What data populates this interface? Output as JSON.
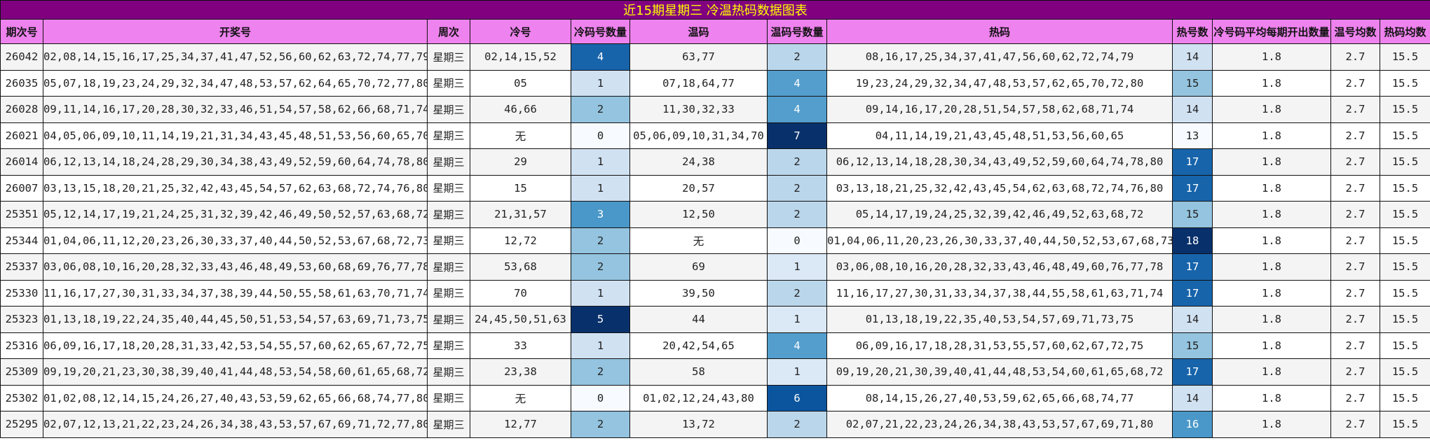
{
  "title": "近15期星期三  冷温热码数据图表",
  "headers": [
    "期次号",
    "开奖号",
    "周次",
    "冷号",
    "冷码号数量",
    "温码",
    "温码号数量",
    "热码",
    "热号数",
    "冷号码平均每期开出数量",
    "温号均数",
    "热码均数"
  ],
  "colors": {
    "title_bg": "#800080",
    "title_text": "#ffff00",
    "header_bg": "#ee82ee",
    "cold_scale": {
      "0": "#f7fbff",
      "1": "#d0e1f2",
      "2": "#94c4df",
      "3": "#4a98c9",
      "4": "#1764ab",
      "5": "#08306b"
    },
    "warm_scale": {
      "0": "#f7fbff",
      "1": "#dbe9f6",
      "2": "#bad6eb",
      "4": "#539ecd",
      "6": "#0b559f",
      "7": "#08306b"
    },
    "hot_scale": {
      "13": "#f7fbff",
      "14": "#d0e1f2",
      "15": "#94c4df",
      "16": "#4a98c9",
      "17": "#1764ab",
      "18": "#08306b"
    }
  },
  "rows": [
    {
      "issue": "26042",
      "numbers": "02,08,14,15,16,17,25,34,37,41,47,52,56,60,62,63,72,74,77,79",
      "week": "星期三",
      "cold": "02,14,15,52",
      "cold_count": 4,
      "warm": "63,77",
      "warm_count": 2,
      "hot": "08,16,17,25,34,37,41,47,56,60,62,72,74,79",
      "hot_count": 14,
      "cold_avg": "1.8",
      "warm_avg": "2.7",
      "hot_avg": "15.5"
    },
    {
      "issue": "26035",
      "numbers": "05,07,18,19,23,24,29,32,34,47,48,53,57,62,64,65,70,72,77,80",
      "week": "星期三",
      "cold": "05",
      "cold_count": 1,
      "warm": "07,18,64,77",
      "warm_count": 4,
      "hot": "19,23,24,29,32,34,47,48,53,57,62,65,70,72,80",
      "hot_count": 15,
      "cold_avg": "1.8",
      "warm_avg": "2.7",
      "hot_avg": "15.5"
    },
    {
      "issue": "26028",
      "numbers": "09,11,14,16,17,20,28,30,32,33,46,51,54,57,58,62,66,68,71,74",
      "week": "星期三",
      "cold": "46,66",
      "cold_count": 2,
      "warm": "11,30,32,33",
      "warm_count": 4,
      "hot": "09,14,16,17,20,28,51,54,57,58,62,68,71,74",
      "hot_count": 14,
      "cold_avg": "1.8",
      "warm_avg": "2.7",
      "hot_avg": "15.5"
    },
    {
      "issue": "26021",
      "numbers": "04,05,06,09,10,11,14,19,21,31,34,43,45,48,51,53,56,60,65,70",
      "week": "星期三",
      "cold": "无",
      "cold_count": 0,
      "warm": "05,06,09,10,31,34,70",
      "warm_count": 7,
      "hot": "04,11,14,19,21,43,45,48,51,53,56,60,65",
      "hot_count": 13,
      "cold_avg": "1.8",
      "warm_avg": "2.7",
      "hot_avg": "15.5"
    },
    {
      "issue": "26014",
      "numbers": "06,12,13,14,18,24,28,29,30,34,38,43,49,52,59,60,64,74,78,80",
      "week": "星期三",
      "cold": "29",
      "cold_count": 1,
      "warm": "24,38",
      "warm_count": 2,
      "hot": "06,12,13,14,18,28,30,34,43,49,52,59,60,64,74,78,80",
      "hot_count": 17,
      "cold_avg": "1.8",
      "warm_avg": "2.7",
      "hot_avg": "15.5"
    },
    {
      "issue": "26007",
      "numbers": "03,13,15,18,20,21,25,32,42,43,45,54,57,62,63,68,72,74,76,80",
      "week": "星期三",
      "cold": "15",
      "cold_count": 1,
      "warm": "20,57",
      "warm_count": 2,
      "hot": "03,13,18,21,25,32,42,43,45,54,62,63,68,72,74,76,80",
      "hot_count": 17,
      "cold_avg": "1.8",
      "warm_avg": "2.7",
      "hot_avg": "15.5"
    },
    {
      "issue": "25351",
      "numbers": "05,12,14,17,19,21,24,25,31,32,39,42,46,49,50,52,57,63,68,72",
      "week": "星期三",
      "cold": "21,31,57",
      "cold_count": 3,
      "warm": "12,50",
      "warm_count": 2,
      "hot": "05,14,17,19,24,25,32,39,42,46,49,52,63,68,72",
      "hot_count": 15,
      "cold_avg": "1.8",
      "warm_avg": "2.7",
      "hot_avg": "15.5"
    },
    {
      "issue": "25344",
      "numbers": "01,04,06,11,12,20,23,26,30,33,37,40,44,50,52,53,67,68,72,73",
      "week": "星期三",
      "cold": "12,72",
      "cold_count": 2,
      "warm": "无",
      "warm_count": 0,
      "hot": "01,04,06,11,20,23,26,30,33,37,40,44,50,52,53,67,68,73",
      "hot_count": 18,
      "cold_avg": "1.8",
      "warm_avg": "2.7",
      "hot_avg": "15.5"
    },
    {
      "issue": "25337",
      "numbers": "03,06,08,10,16,20,28,32,33,43,46,48,49,53,60,68,69,76,77,78",
      "week": "星期三",
      "cold": "53,68",
      "cold_count": 2,
      "warm": "69",
      "warm_count": 1,
      "hot": "03,06,08,10,16,20,28,32,33,43,46,48,49,60,76,77,78",
      "hot_count": 17,
      "cold_avg": "1.8",
      "warm_avg": "2.7",
      "hot_avg": "15.5"
    },
    {
      "issue": "25330",
      "numbers": "11,16,17,27,30,31,33,34,37,38,39,44,50,55,58,61,63,70,71,74",
      "week": "星期三",
      "cold": "70",
      "cold_count": 1,
      "warm": "39,50",
      "warm_count": 2,
      "hot": "11,16,17,27,30,31,33,34,37,38,44,55,58,61,63,71,74",
      "hot_count": 17,
      "cold_avg": "1.8",
      "warm_avg": "2.7",
      "hot_avg": "15.5"
    },
    {
      "issue": "25323",
      "numbers": "01,13,18,19,22,24,35,40,44,45,50,51,53,54,57,63,69,71,73,75",
      "week": "星期三",
      "cold": "24,45,50,51,63",
      "cold_count": 5,
      "warm": "44",
      "warm_count": 1,
      "hot": "01,13,18,19,22,35,40,53,54,57,69,71,73,75",
      "hot_count": 14,
      "cold_avg": "1.8",
      "warm_avg": "2.7",
      "hot_avg": "15.5"
    },
    {
      "issue": "25316",
      "numbers": "06,09,16,17,18,20,28,31,33,42,53,54,55,57,60,62,65,67,72,75",
      "week": "星期三",
      "cold": "33",
      "cold_count": 1,
      "warm": "20,42,54,65",
      "warm_count": 4,
      "hot": "06,09,16,17,18,28,31,53,55,57,60,62,67,72,75",
      "hot_count": 15,
      "cold_avg": "1.8",
      "warm_avg": "2.7",
      "hot_avg": "15.5"
    },
    {
      "issue": "25309",
      "numbers": "09,19,20,21,23,30,38,39,40,41,44,48,53,54,58,60,61,65,68,72",
      "week": "星期三",
      "cold": "23,38",
      "cold_count": 2,
      "warm": "58",
      "warm_count": 1,
      "hot": "09,19,20,21,30,39,40,41,44,48,53,54,60,61,65,68,72",
      "hot_count": 17,
      "cold_avg": "1.8",
      "warm_avg": "2.7",
      "hot_avg": "15.5"
    },
    {
      "issue": "25302",
      "numbers": "01,02,08,12,14,15,24,26,27,40,43,53,59,62,65,66,68,74,77,80",
      "week": "星期三",
      "cold": "无",
      "cold_count": 0,
      "warm": "01,02,12,24,43,80",
      "warm_count": 6,
      "hot": "08,14,15,26,27,40,53,59,62,65,66,68,74,77",
      "hot_count": 14,
      "cold_avg": "1.8",
      "warm_avg": "2.7",
      "hot_avg": "15.5"
    },
    {
      "issue": "25295",
      "numbers": "02,07,12,13,21,22,23,24,26,34,38,43,53,57,67,69,71,72,77,80",
      "week": "星期三",
      "cold": "12,77",
      "cold_count": 2,
      "warm": "13,72",
      "warm_count": 2,
      "hot": "02,07,21,22,23,24,26,34,38,43,53,57,67,69,71,80",
      "hot_count": 16,
      "cold_avg": "1.8",
      "warm_avg": "2.7",
      "hot_avg": "15.5"
    }
  ]
}
